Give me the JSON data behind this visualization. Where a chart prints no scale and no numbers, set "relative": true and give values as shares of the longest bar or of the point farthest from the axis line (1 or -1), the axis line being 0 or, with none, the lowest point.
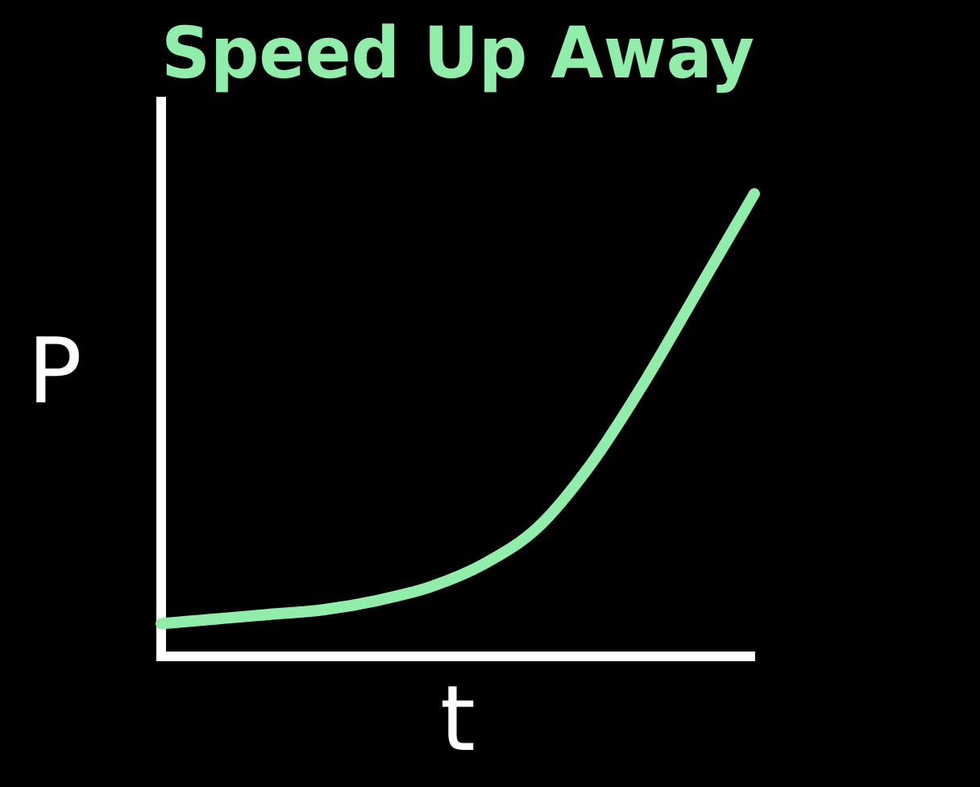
{
  "chart_data": {
    "type": "line",
    "title": "Speed Up Away",
    "xlabel": "t",
    "ylabel": "P",
    "relative": true,
    "categories": [
      null,
      null,
      null,
      null,
      null,
      null,
      null,
      null,
      null,
      null,
      null,
      null
    ],
    "series": [
      {
        "color": "#90eeaa",
        "values": [
          0.07,
          0.08,
          0.09,
          0.1,
          0.12,
          0.15,
          0.2,
          0.28,
          0.42,
          0.6,
          0.8,
          1.0
        ]
      }
    ],
    "marker": "none",
    "legend": false
  }
}
